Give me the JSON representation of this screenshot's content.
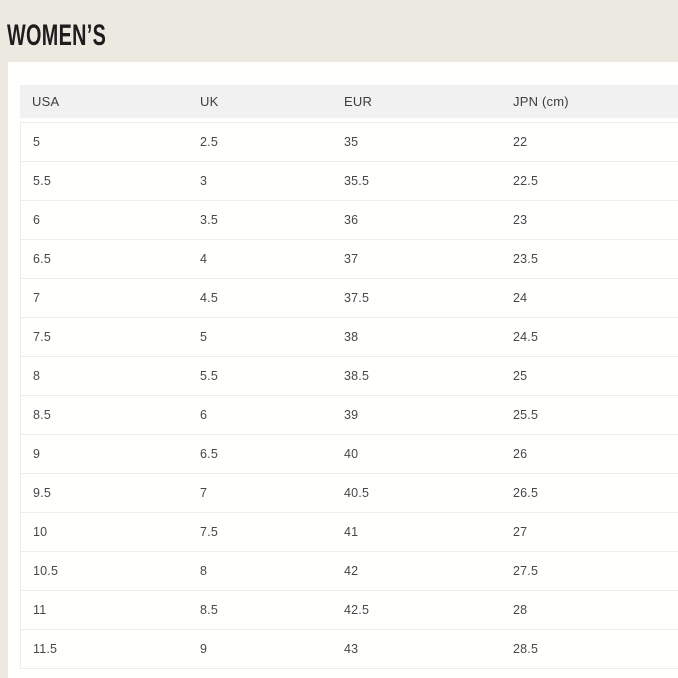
{
  "page": {
    "title": "WOMEN’S"
  },
  "table": {
    "columns": [
      "USA",
      "UK",
      "EUR",
      "JPN (cm)"
    ],
    "rows": [
      [
        "5",
        "2.5",
        "35",
        "22"
      ],
      [
        "5.5",
        "3",
        "35.5",
        "22.5"
      ],
      [
        "6",
        "3.5",
        "36",
        "23"
      ],
      [
        "6.5",
        "4",
        "37",
        "23.5"
      ],
      [
        "7",
        "4.5",
        "37.5",
        "24"
      ],
      [
        "7.5",
        "5",
        "38",
        "24.5"
      ],
      [
        "8",
        "5.5",
        "38.5",
        "25"
      ],
      [
        "8.5",
        "6",
        "39",
        "25.5"
      ],
      [
        "9",
        "6.5",
        "40",
        "26"
      ],
      [
        "9.5",
        "7",
        "40.5",
        "26.5"
      ],
      [
        "10",
        "7.5",
        "41",
        "27"
      ],
      [
        "10.5",
        "8",
        "42",
        "27.5"
      ],
      [
        "11",
        "8.5",
        "42.5",
        "28"
      ],
      [
        "11.5",
        "9",
        "43",
        "28.5"
      ]
    ]
  },
  "colors": {
    "background": "#ece9e1",
    "card": "#fffffe",
    "header_row": "#f1f1f1",
    "border": "#ececec",
    "text": "#474747",
    "header_text": "#3d3d3d",
    "title": "#1d1d1d"
  }
}
